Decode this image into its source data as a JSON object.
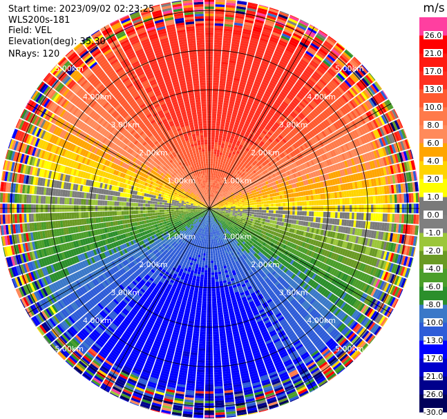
{
  "info": {
    "start_time": "Start time: 2023/09/02 02:23:25",
    "instrument": "WLS200s-181",
    "field": "Field: VEL",
    "elevation": "Elevation(deg): 35.30",
    "nrays": "NRays: 120"
  },
  "chart_data": {
    "type": "heatmap",
    "projection": "polar-ppi",
    "field": "VEL",
    "n_rays": 120,
    "max_range_km": 5.3,
    "range_rings_km": [
      1,
      2,
      3,
      4,
      5
    ],
    "range_labels": [
      "1.00km",
      "2.00km",
      "3.00km",
      "4.00km",
      "5.00km"
    ],
    "colorbar": {
      "unit": "m/s",
      "bounds": [
        -30,
        -26,
        -21,
        -17,
        -13,
        -10,
        -8,
        -6,
        -4,
        -2,
        -1,
        0,
        1,
        2,
        4,
        6,
        8,
        10,
        13,
        17,
        21,
        26,
        30
      ],
      "tick_labels": [
        "-30.0",
        "-26.0",
        "-21.0",
        "-17.0",
        "-13.0",
        "-10.0",
        "-8.0",
        "-6.0",
        "-4.0",
        "-2.0",
        "-1.0",
        "0.0",
        "1.0",
        "2.0",
        "4.0",
        "6.0",
        "8.0",
        "10.0",
        "13.0",
        "17.0",
        "21.0",
        "26.0"
      ],
      "colors": [
        "#00005a",
        "#00008c",
        "#0000cc",
        "#0000ff",
        "#2e5cd8",
        "#3a78c8",
        "#2b8f2b",
        "#4a9e2a",
        "#6a9a24",
        "#9bc63a",
        "#7f7f7f",
        "#7a7a7a",
        "#ffff00",
        "#ffd400",
        "#ffa500",
        "#ff8a5a",
        "#ff7a4a",
        "#ff5a30",
        "#ff3020",
        "#ff1a10",
        "#ff0000",
        "#ff3fa0"
      ]
    }
  }
}
